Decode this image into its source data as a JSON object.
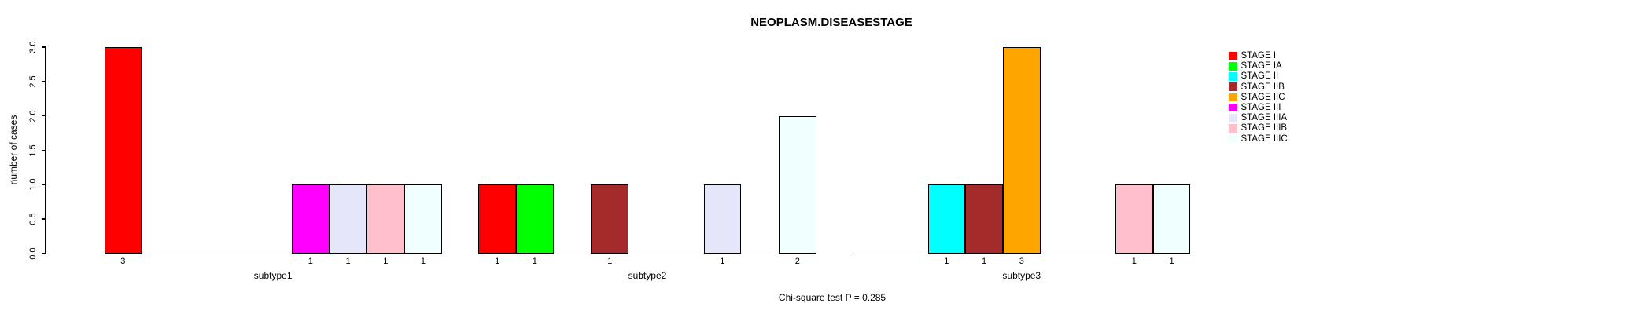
{
  "chart_data": {
    "type": "bar",
    "title": "NEOPLASM.DISEASESTAGE",
    "ylabel": "number of cases",
    "xlabel": "",
    "ylim": [
      0,
      3
    ],
    "yticks": [
      "0.0",
      "0.5",
      "1.0",
      "1.5",
      "2.0",
      "2.5",
      "3.0"
    ],
    "annotation": "Chi-square test P = 0.285",
    "legend_position": "right",
    "grid": false,
    "categories": [
      "subtype1",
      "subtype2",
      "subtype3"
    ],
    "series": [
      {
        "name": "STAGE I",
        "color": "#FF0000",
        "values": [
          3,
          1,
          0
        ]
      },
      {
        "name": "STAGE IA",
        "color": "#00FF00",
        "values": [
          0,
          1,
          0
        ]
      },
      {
        "name": "STAGE II",
        "color": "#00FFFF",
        "values": [
          0,
          0,
          1
        ]
      },
      {
        "name": "STAGE IIB",
        "color": "#A52A2A",
        "values": [
          0,
          1,
          1
        ]
      },
      {
        "name": "STAGE IIC",
        "color": "#FFA500",
        "values": [
          0,
          0,
          3
        ]
      },
      {
        "name": "STAGE III",
        "color": "#FF00FF",
        "values": [
          1,
          0,
          0
        ]
      },
      {
        "name": "STAGE IIIA",
        "color": "#E6E6FA",
        "values": [
          1,
          1,
          0
        ]
      },
      {
        "name": "STAGE IIIB",
        "color": "#FFC0CB",
        "values": [
          1,
          0,
          1
        ]
      },
      {
        "name": "STAGE IIIC",
        "color": "#F0FFFF",
        "values": [
          1,
          2,
          1
        ]
      }
    ]
  }
}
